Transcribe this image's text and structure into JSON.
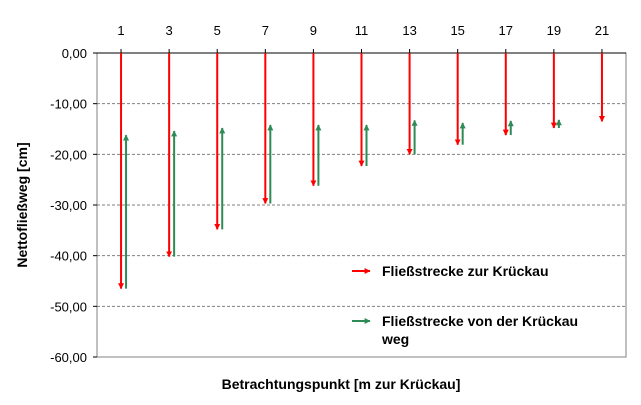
{
  "chart_data": {
    "type": "arrow-range",
    "title": "",
    "xlabel": "Betrachtungspunkt [m zur Krückau]",
    "ylabel": "Nettofließweg [cm]",
    "x": [
      1,
      3,
      5,
      7,
      9,
      11,
      13,
      15,
      17,
      19,
      21
    ],
    "x_tick_labels": [
      "1",
      "3",
      "5",
      "7",
      "9",
      "11",
      "13",
      "15",
      "17",
      "19",
      "21"
    ],
    "ylim": [
      -60,
      0
    ],
    "y_ticks": [
      0,
      -10,
      -20,
      -30,
      -40,
      -50,
      -60
    ],
    "y_tick_labels": [
      "0,00",
      "-10,00",
      "-20,00",
      "-30,00",
      "-40,00",
      "-50,00",
      "-60,00"
    ],
    "grid": "horizontal-dashed",
    "legend_position": "bottom-right-inside",
    "series": [
      {
        "name": "Fließstrecke zur Krückau",
        "color": "#ff0000",
        "direction": "down",
        "start": [
          0,
          0,
          0,
          0,
          0,
          0,
          0,
          0,
          0,
          0,
          0
        ],
        "end": [
          -46.5,
          -40.2,
          -34.8,
          -29.7,
          -26.2,
          -22.3,
          -20.0,
          -18.1,
          -16.2,
          -14.8,
          -13.5
        ]
      },
      {
        "name": "Fließstrecke von der Krückau weg",
        "color": "#2e8b57",
        "direction": "up",
        "start": [
          -46.5,
          -40.2,
          -34.8,
          -29.7,
          -26.2,
          -22.3,
          -20.0,
          -18.1,
          -16.2,
          -14.8,
          null
        ],
        "end": [
          -16.2,
          -15.4,
          -14.8,
          -14.2,
          -14.2,
          -14.2,
          -13.3,
          -13.8,
          -13.4,
          -13.2,
          null
        ]
      }
    ]
  }
}
